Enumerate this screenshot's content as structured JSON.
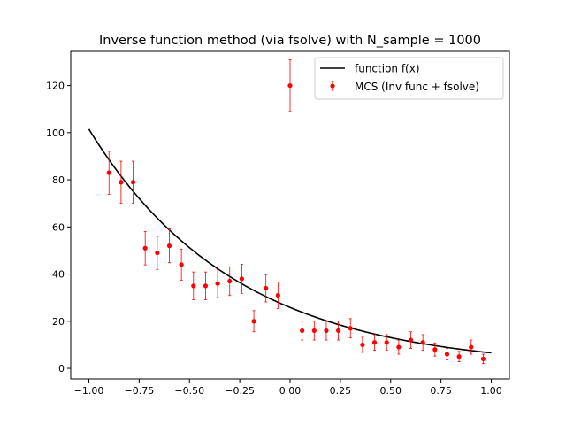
{
  "chart_data": {
    "type": "scatter",
    "title": "Inverse function method (via fsolve) with N_sample = 1000",
    "xlabel": "",
    "ylabel": "",
    "xlim": [
      -1.09,
      1.09
    ],
    "ylim": [
      -4.5,
      134.5
    ],
    "xticks": [
      -1.0,
      -0.75,
      -0.5,
      -0.25,
      0.0,
      0.25,
      0.5,
      0.75,
      1.0
    ],
    "xtick_labels": [
      "−1.00",
      "−0.75",
      "−0.50",
      "−0.25",
      "0.00",
      "0.25",
      "0.50",
      "0.75",
      "1.00"
    ],
    "yticks": [
      0,
      20,
      40,
      60,
      80,
      100,
      120
    ],
    "ytick_labels": [
      "0",
      "20",
      "40",
      "60",
      "80",
      "100",
      "120"
    ],
    "grid": false,
    "legend": {
      "placement": "top-right",
      "entries": [
        "function f(x)",
        "MCS (Inv func + fsolve)"
      ]
    },
    "colors": {
      "curve": "#000000",
      "points": "#ff0000",
      "axes": "#000000"
    },
    "series": [
      {
        "name": "function f(x)",
        "kind": "line",
        "expression": "101.5 * exp(-1.368 * (x + 1))",
        "x_range": [
          -1.0,
          1.0
        ]
      },
      {
        "name": "MCS (Inv func + fsolve)",
        "kind": "errorbar",
        "x": [
          -0.9,
          -0.84,
          -0.78,
          -0.72,
          -0.66,
          -0.6,
          -0.54,
          -0.48,
          -0.42,
          -0.36,
          -0.3,
          -0.24,
          -0.18,
          -0.12,
          -0.06,
          0.0,
          0.06,
          0.12,
          0.18,
          0.24,
          0.3,
          0.36,
          0.42,
          0.48,
          0.54,
          0.6,
          0.66,
          0.72,
          0.78,
          0.84,
          0.9,
          0.96
        ],
        "y": [
          83,
          79,
          79,
          51,
          49,
          52,
          44,
          35,
          35,
          36,
          37,
          38,
          20,
          34,
          31,
          120,
          16,
          16,
          16,
          16,
          17,
          10,
          11,
          11,
          9,
          12,
          11,
          8,
          6,
          5,
          9,
          4
        ],
        "yerr": [
          9.1,
          8.9,
          8.9,
          7.1,
          7.0,
          7.2,
          6.6,
          5.9,
          5.9,
          6.0,
          6.1,
          6.2,
          4.5,
          5.8,
          5.6,
          11.0,
          4.0,
          4.0,
          4.0,
          4.0,
          4.1,
          3.2,
          3.3,
          3.3,
          3.0,
          3.5,
          3.3,
          2.8,
          2.4,
          2.2,
          3.0,
          2.0
        ]
      }
    ]
  }
}
